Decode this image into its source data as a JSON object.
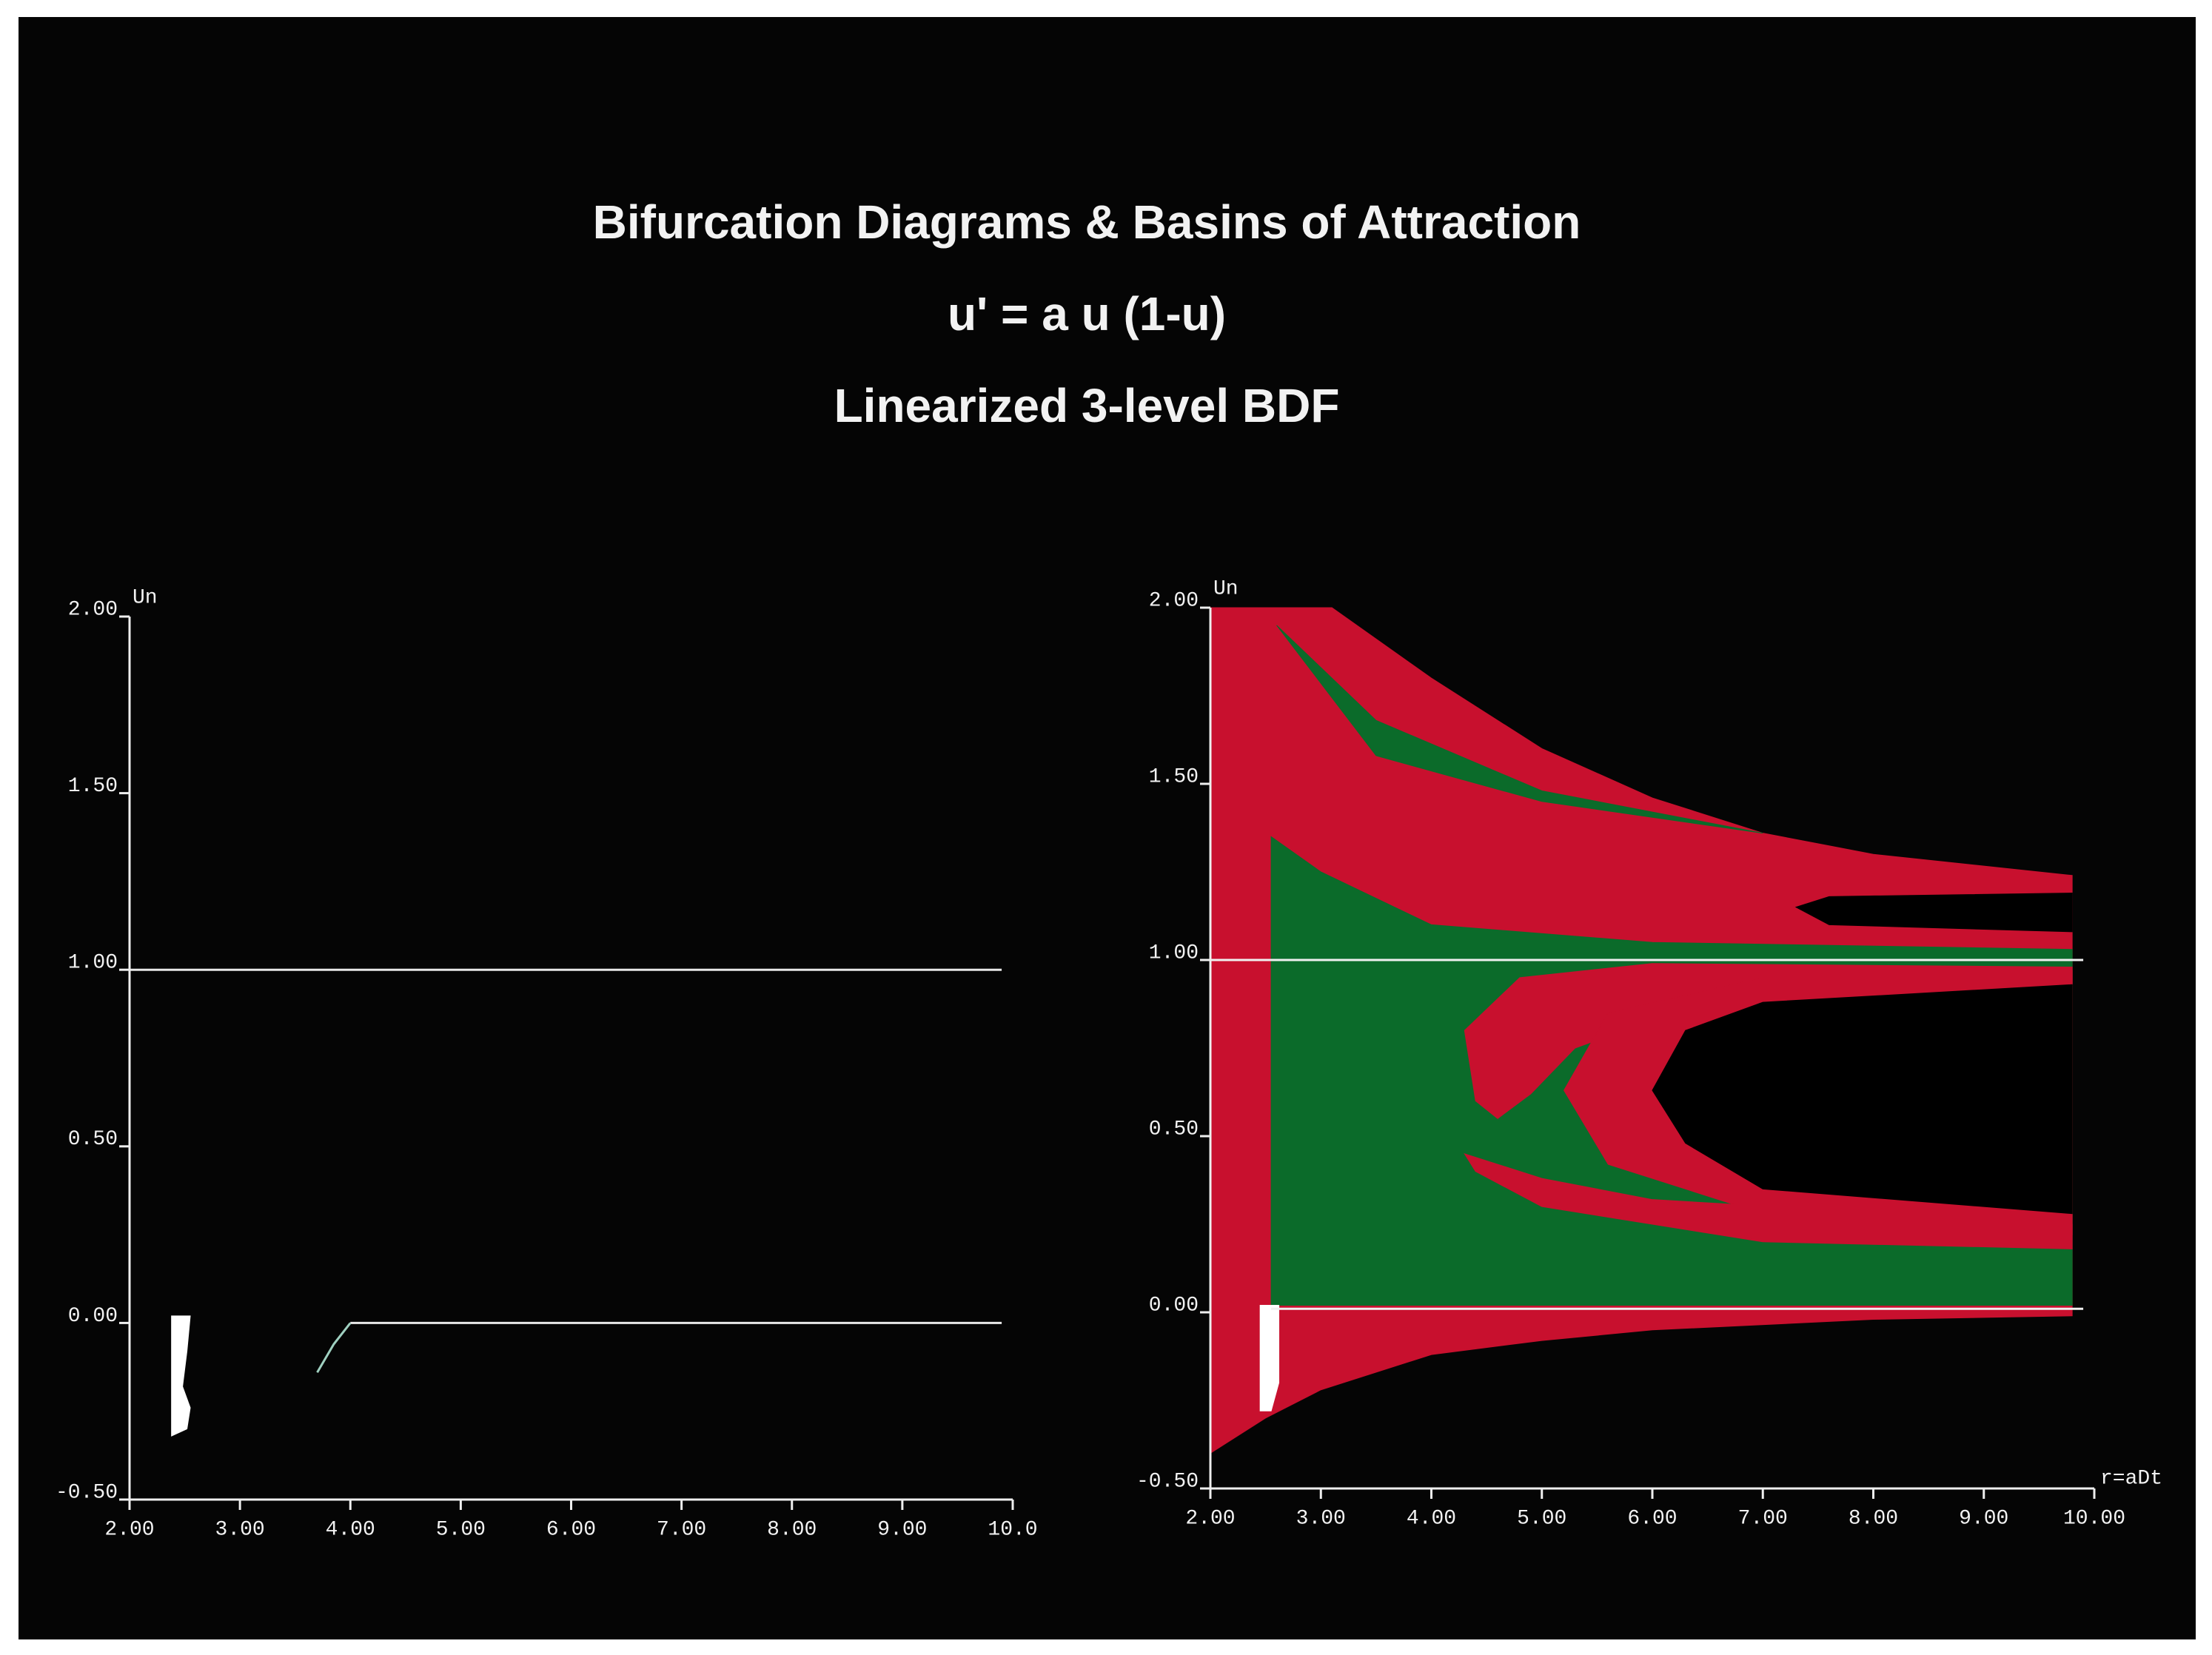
{
  "title_lines": [
    "Bifurcation Diagrams  &  Basins of Attraction",
    "u' = a u (1-u)",
    "Linearized 3-level BDF"
  ],
  "chart_data": [
    {
      "type": "line",
      "ylabel": "Un",
      "xlim": [
        2,
        10
      ],
      "ylim": [
        -0.5,
        2
      ],
      "xticks": [
        {
          "value": 2,
          "label": "2.00"
        },
        {
          "value": 3,
          "label": "3.00"
        },
        {
          "value": 4,
          "label": "4.00"
        },
        {
          "value": 5,
          "label": "5.00"
        },
        {
          "value": 6,
          "label": "6.00"
        },
        {
          "value": 7,
          "label": "7.00"
        },
        {
          "value": 8,
          "label": "8.00"
        },
        {
          "value": 9,
          "label": "9.00"
        },
        {
          "value": 10,
          "label": "10.0"
        }
      ],
      "yticks": [
        {
          "value": -0.5,
          "label": "-0.50"
        },
        {
          "value": 0,
          "label": "0.00"
        },
        {
          "value": 0.5,
          "label": "0.50"
        },
        {
          "value": 1,
          "label": "1.00"
        },
        {
          "value": 1.5,
          "label": "1.50"
        },
        {
          "value": 2,
          "label": "2.00"
        }
      ],
      "series": [
        {
          "color": "#e8e8e8",
          "fill": false,
          "x": [
            2,
            9.9
          ],
          "y": [
            1,
            1
          ]
        },
        {
          "color": "#e8e8e8",
          "fill": false,
          "x": [
            4,
            9.9
          ],
          "y": [
            0,
            0
          ]
        },
        {
          "color": "#9fd0c0",
          "fill": false,
          "x": [
            3.7,
            3.85,
            4.0
          ],
          "y": [
            -0.14,
            -0.06,
            0
          ]
        },
        {
          "color": "#ffffff",
          "fill": true,
          "x": [
            2.38,
            2.55,
            2.52,
            2.48,
            2.55,
            2.52,
            2.38
          ],
          "y": [
            0.02,
            0.02,
            -0.08,
            -0.18,
            -0.24,
            -0.3,
            -0.32
          ]
        }
      ]
    },
    {
      "type": "area",
      "ylabel": "Un",
      "xlabel": "r=aDt",
      "xlim": [
        2,
        10
      ],
      "ylim": [
        -0.5,
        2
      ],
      "xticks": [
        {
          "value": 2,
          "label": "2.00"
        },
        {
          "value": 3,
          "label": "3.00"
        },
        {
          "value": 4,
          "label": "4.00"
        },
        {
          "value": 5,
          "label": "5.00"
        },
        {
          "value": 6,
          "label": "6.00"
        },
        {
          "value": 7,
          "label": "7.00"
        },
        {
          "value": 8,
          "label": "8.00"
        },
        {
          "value": 9,
          "label": "9.00"
        },
        {
          "value": 10,
          "label": "10.00"
        }
      ],
      "yticks": [
        {
          "value": -0.5,
          "label": "-0.50"
        },
        {
          "value": 0,
          "label": "0.00"
        },
        {
          "value": 0.5,
          "label": "0.50"
        },
        {
          "value": 1,
          "label": "1.00"
        },
        {
          "value": 1.5,
          "label": "1.50"
        },
        {
          "value": 2,
          "label": "2.00"
        }
      ],
      "series": [
        {
          "color": "#c8102e",
          "fill": true,
          "x": [
            2.0,
            3.1,
            4,
            5,
            6,
            7,
            8,
            9.8,
            9.8,
            8,
            6,
            5,
            4,
            3,
            2.5,
            2.0
          ],
          "y": [
            2.0,
            2.0,
            1.8,
            1.6,
            1.46,
            1.36,
            1.3,
            1.24,
            -0.01,
            -0.02,
            -0.05,
            -0.08,
            -0.12,
            -0.22,
            -0.3,
            -0.4
          ]
        },
        {
          "color": "#0b6b2a",
          "fill": true,
          "x": [
            2.55,
            3,
            4,
            6,
            9.8,
            9.8,
            2.55
          ],
          "y": [
            1.35,
            1.25,
            1.1,
            1.05,
            1.03,
            0.02,
            0.02
          ]
        },
        {
          "color": "#0b6b2a",
          "fill": true,
          "x": [
            2.6,
            3.5,
            5,
            7,
            5,
            3.5
          ],
          "y": [
            1.95,
            1.68,
            1.48,
            1.36,
            1.45,
            1.58
          ]
        },
        {
          "color": "#c8102e",
          "fill": true,
          "x": [
            4.3,
            4.8,
            6,
            9.8,
            9.8,
            7,
            6,
            5.3,
            4.9,
            4.6,
            4.4
          ],
          "y": [
            0.8,
            0.95,
            0.99,
            0.98,
            0.93,
            0.88,
            0.83,
            0.75,
            0.62,
            0.55,
            0.6
          ]
        },
        {
          "color": "#c8102e",
          "fill": true,
          "x": [
            5.2,
            5.6,
            7,
            9.8,
            9.8,
            7,
            5.6
          ],
          "y": [
            0.63,
            0.85,
            0.95,
            0.97,
            0.22,
            0.28,
            0.42
          ]
        },
        {
          "color": "#000000",
          "fill": true,
          "x": [
            6.0,
            6.3,
            7,
            9.8,
            9.8,
            7,
            6.3
          ],
          "y": [
            0.63,
            0.8,
            0.88,
            0.93,
            0.28,
            0.35,
            0.48
          ]
        },
        {
          "color": "#c8102e",
          "fill": true,
          "x": [
            4.3,
            5,
            6,
            9.8,
            9.8,
            7,
            5,
            4.4
          ],
          "y": [
            0.45,
            0.38,
            0.32,
            0.25,
            0.18,
            0.2,
            0.3,
            0.4
          ]
        },
        {
          "color": "#000000",
          "fill": true,
          "x": [
            7.3,
            7.6,
            9.8,
            9.8,
            7.6
          ],
          "y": [
            1.15,
            1.18,
            1.19,
            1.08,
            1.1
          ]
        },
        {
          "color": "#ffffff",
          "fill": true,
          "x": [
            2.45,
            2.62,
            2.62,
            2.55,
            2.45
          ],
          "y": [
            0.02,
            0.02,
            -0.2,
            -0.28,
            -0.28
          ]
        },
        {
          "color": "#f0f0f0",
          "fill": false,
          "x": [
            2.0,
            9.9
          ],
          "y": [
            1,
            1
          ]
        },
        {
          "color": "#f0f0f0",
          "fill": false,
          "x": [
            2.55,
            9.9
          ],
          "y": [
            0.01,
            0.01
          ]
        }
      ]
    }
  ]
}
